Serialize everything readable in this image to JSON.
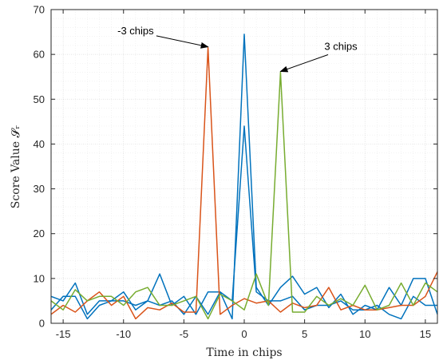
{
  "chart_data": {
    "type": "line",
    "xlabel": "Time in chips",
    "ylabel": "Score Value 𝓢ᵣ",
    "xlim": [
      -16,
      16
    ],
    "ylim": [
      0,
      70
    ],
    "xticks": [
      -15,
      -10,
      -5,
      0,
      5,
      10,
      15
    ],
    "yticks": [
      0,
      10,
      20,
      30,
      40,
      50,
      60,
      70
    ],
    "grid": true,
    "minor_grid": true,
    "series": [
      {
        "color": "#0072BD",
        "x": [
          -16,
          -15,
          -14,
          -13,
          -12,
          -11,
          -10,
          -9,
          -8,
          -7,
          -6,
          -5,
          -4,
          -3,
          -2,
          -1,
          0,
          1,
          2,
          3,
          4,
          5,
          6,
          7,
          8,
          9,
          10,
          11,
          12,
          13,
          14,
          15,
          16
        ],
        "y": [
          6,
          5,
          9,
          2,
          5,
          5,
          7,
          3,
          5,
          11,
          4,
          6,
          2,
          7,
          7,
          1,
          64.5,
          8,
          4,
          8,
          10.5,
          6.5,
          8,
          3.5,
          6.5,
          2,
          4,
          3,
          8,
          4,
          10,
          10,
          2
        ]
      },
      {
        "color": "#0072BD",
        "x": [
          -16,
          -15,
          -14,
          -13,
          -12,
          -11,
          -10,
          -9,
          -8,
          -7,
          -6,
          -5,
          -4,
          -3,
          -2,
          -1,
          0,
          1,
          2,
          3,
          4,
          5,
          6,
          7,
          8,
          9,
          10,
          11,
          12,
          13,
          14,
          15,
          16
        ],
        "y": [
          3,
          6,
          6,
          1,
          4,
          5,
          5,
          4,
          5,
          4,
          5,
          2,
          6,
          2,
          7,
          5,
          44,
          7,
          5,
          5,
          6,
          3,
          4,
          4,
          5,
          3,
          3,
          4,
          2,
          1,
          6,
          4,
          4
        ]
      },
      {
        "color": "#D95319",
        "x": [
          -16,
          -15,
          -14,
          -13,
          -12,
          -11,
          -10,
          -9,
          -8,
          -7,
          -6,
          -5,
          -4,
          -3,
          -2,
          -1,
          0,
          1,
          2,
          3,
          4,
          5,
          6,
          7,
          8,
          9,
          10,
          11,
          12,
          13,
          14,
          15,
          16
        ],
        "y": [
          2,
          4,
          2.5,
          5,
          7,
          4,
          6,
          1,
          3.5,
          3,
          4.5,
          2.5,
          2.5,
          61.5,
          2,
          4,
          5.5,
          4.5,
          5,
          2.5,
          4.5,
          3.5,
          4,
          8,
          3,
          4,
          3,
          3,
          3.5,
          4,
          4,
          6,
          11.5
        ]
      },
      {
        "color": "#77AC30",
        "x": [
          -16,
          -15,
          -14,
          -13,
          -12,
          -11,
          -10,
          -9,
          -8,
          -7,
          -6,
          -5,
          -4,
          -3,
          -2,
          -1,
          0,
          1,
          2,
          3,
          4,
          5,
          6,
          7,
          8,
          9,
          10,
          11,
          12,
          13,
          14,
          15,
          16
        ],
        "y": [
          5,
          3,
          7.5,
          5,
          6,
          6,
          4,
          7,
          8,
          4,
          4,
          5,
          6,
          1,
          6.5,
          5,
          3,
          11,
          4,
          56,
          2.5,
          2.5,
          6,
          4,
          5.5,
          4,
          8.5,
          3,
          4,
          9,
          4,
          9,
          7
        ]
      }
    ],
    "annotations": [
      {
        "text": "-3 chips",
        "target": [
          -3,
          61.5
        ],
        "text_pos": [
          -9,
          64.5
        ]
      },
      {
        "text": "3 chips",
        "target": [
          3,
          56
        ],
        "text_pos": [
          8,
          61
        ]
      }
    ]
  }
}
